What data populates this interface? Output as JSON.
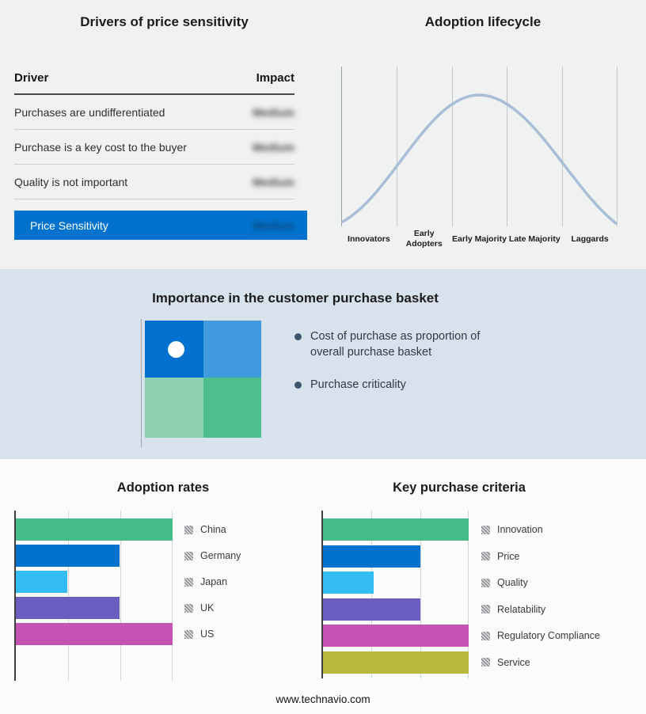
{
  "page": {
    "footer": "www.technavio.com"
  },
  "drivers_table": {
    "title": "Drivers of price sensitivity",
    "headers": {
      "driver": "Driver",
      "impact": "Impact"
    },
    "rows": [
      {
        "driver": "Purchases are undifferentiated",
        "impact": "Medium"
      },
      {
        "driver": "Purchase is a key cost to the buyer",
        "impact": "Medium"
      },
      {
        "driver": "Quality is not important",
        "impact": "Medium"
      }
    ],
    "summary_row": {
      "label": "Price Sensitivity",
      "impact": "Medium",
      "bg": "#0173cf"
    }
  },
  "basket": {
    "title": "Importance in the customer purchase basket",
    "bullets": [
      "Cost of purchase as proportion of overall purchase basket",
      "Purchase criticality"
    ],
    "quadrant": {
      "top_left": "#0170ce",
      "top_right": "#3f9bde",
      "bottom_left": "#8fd1ae",
      "bottom_right": "#4ebe8c"
    }
  },
  "chart_data": [
    {
      "type": "line",
      "title": "Adoption lifecycle",
      "categories": [
        "Innovators",
        "Early Adopters",
        "Early Majority",
        "Late Majority",
        "Laggards"
      ],
      "description": "Bell-shaped adoption curve rising through Innovators and Early Adopters, peaking at Early Majority, declining through Late Majority to Laggards",
      "line_color": "#a9bed6",
      "grid": true,
      "legend_position": "none"
    },
    {
      "type": "bar",
      "title": "Adoption rates",
      "orientation": "horizontal",
      "categories": [
        "China",
        "Germany",
        "Japan",
        "UK",
        "US"
      ],
      "values": [
        100,
        66,
        33,
        66,
        100
      ],
      "xlim": [
        0,
        100
      ],
      "xlabel": "",
      "ylabel": "",
      "colors": [
        "#46be8c",
        "#0173cf",
        "#33bdf2",
        "#6a5ec1",
        "#c453b4"
      ],
      "grid": true,
      "legend_position": "right"
    },
    {
      "type": "bar",
      "title": "Key purchase criteria",
      "orientation": "horizontal",
      "categories": [
        "Innovation",
        "Price",
        "Quality",
        "Relatability",
        "Regulatory Compliance",
        "Service"
      ],
      "values": [
        100,
        67,
        35,
        67,
        100,
        100
      ],
      "xlim": [
        0,
        100
      ],
      "xlabel": "",
      "ylabel": "",
      "colors": [
        "#46be8c",
        "#0173cf",
        "#33bdf2",
        "#6a5ec1",
        "#c453b4",
        "#b8b83a"
      ],
      "grid": true,
      "legend_position": "right"
    }
  ]
}
